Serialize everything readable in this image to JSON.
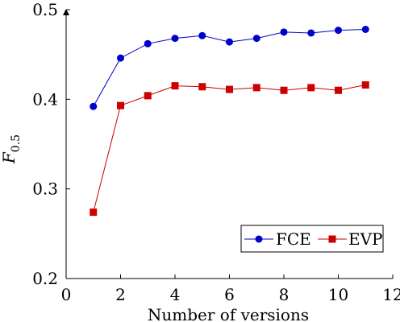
{
  "chart_data": {
    "type": "line",
    "title": "",
    "xlabel": "Number of versions",
    "ylabel": "F",
    "ylabel_sub": "0.5",
    "xlim": [
      0,
      12
    ],
    "ylim": [
      0.2,
      0.5
    ],
    "xticks": [
      "0",
      "2",
      "4",
      "6",
      "8",
      "10",
      "12"
    ],
    "yticks": [
      "0.2",
      "0.3",
      "0.4",
      "0.5"
    ],
    "grid": false,
    "legend_position": "bottom-right",
    "x": [
      1,
      2,
      3,
      4,
      5,
      6,
      7,
      8,
      9,
      10,
      11
    ],
    "series": [
      {
        "name": "FCE",
        "color": "#0000cc",
        "marker": "circle",
        "values": [
          0.392,
          0.446,
          0.462,
          0.468,
          0.471,
          0.464,
          0.468,
          0.475,
          0.474,
          0.477,
          0.478
        ]
      },
      {
        "name": "EVP",
        "color": "#cc0000",
        "marker": "square",
        "values": [
          0.274,
          0.393,
          0.404,
          0.415,
          0.414,
          0.411,
          0.413,
          0.41,
          0.413,
          0.41,
          0.416
        ]
      }
    ]
  }
}
